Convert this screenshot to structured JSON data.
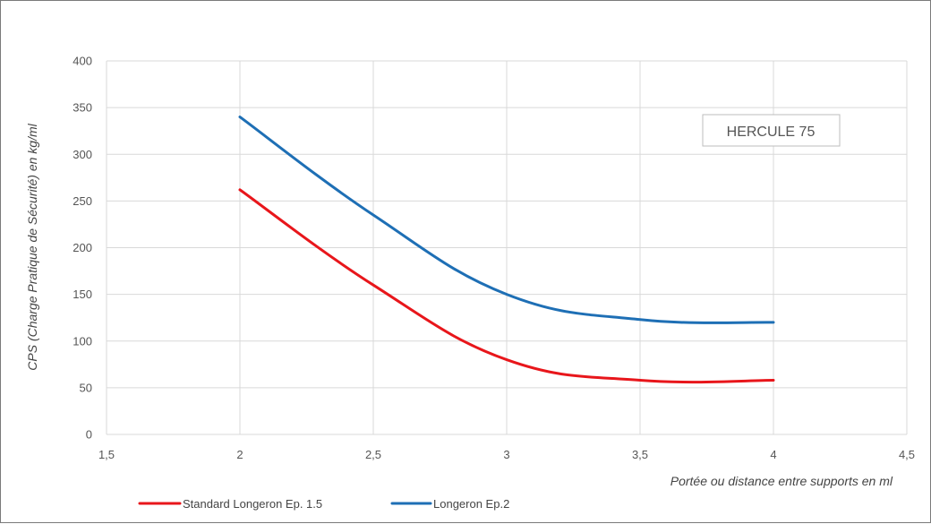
{
  "chart_data": {
    "type": "line",
    "title": "",
    "xlabel": "Portée ou distance entre supports en ml",
    "ylabel": "CPS (Charge Pratique de Sécurité) en kg/ml",
    "xlim": [
      1.5,
      4.5
    ],
    "ylim": [
      0,
      400
    ],
    "x_ticks": [
      1.5,
      2,
      2.5,
      3,
      3.5,
      4,
      4.5
    ],
    "x_tick_labels": [
      "1,5",
      "2",
      "2,5",
      "3",
      "3,5",
      "4",
      "4,5"
    ],
    "y_ticks": [
      0,
      50,
      100,
      150,
      200,
      250,
      300,
      350,
      400
    ],
    "y_tick_labels": [
      "0",
      "50",
      "100",
      "150",
      "200",
      "250",
      "300",
      "350",
      "400"
    ],
    "grid": true,
    "legend_position": "bottom-left",
    "annotation": "HERCULE 75",
    "series": [
      {
        "name": "Standard Longeron Ep. 1.5",
        "color": "#e8161b",
        "x": [
          2,
          2.5,
          3,
          3.5,
          4
        ],
        "y": [
          262,
          160,
          80,
          58,
          58
        ]
      },
      {
        "name": "Longeron Ep.2",
        "color": "#1e6fb5",
        "x": [
          2,
          2.5,
          3,
          3.5,
          4
        ],
        "y": [
          340,
          235,
          150,
          123,
          120
        ]
      }
    ]
  }
}
